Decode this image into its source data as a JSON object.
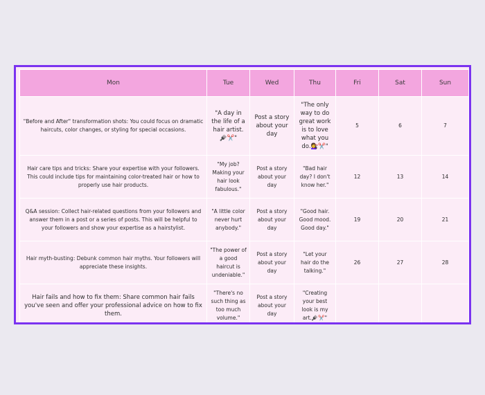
{
  "headers": [
    "Mon",
    "Tue",
    "Wed",
    "Thu",
    "Fri",
    "Sat",
    "Sun"
  ],
  "rows": [
    {
      "mon": "\"Before and After\" transformation shots: You could focus on dramatic haircuts, color changes, or styling for special occasions.",
      "tue": "\"A day in the life of a hair artist.🪮✂️\"",
      "wed": "Post a story about your day",
      "thu": "\"The only way to do great work is to love what you do.💇‍♀️✂️\"",
      "fri": "5",
      "sat": "6",
      "sun": "7"
    },
    {
      "mon": "Hair care tips and tricks: Share your expertise with your followers. This could include tips for maintaining color-treated hair or how to properly use hair products.",
      "tue": "\"My job? Making your hair look fabulous.\"",
      "wed": "Post a story about your day",
      "thu": "\"Bad hair day? I don't know her.\"",
      "fri": "12",
      "sat": "13",
      "sun": "14"
    },
    {
      "mon": "Q&A session: Collect hair-related questions from your followers and answer them in a post or a series of posts. This will be helpful to your followers and show your expertise as a hairstylist.",
      "tue": "\"A little color never hurt anybody.\"",
      "wed": "Post a story about your day",
      "thu": "\"Good hair. Good mood. Good day.\"",
      "fri": "19",
      "sat": "20",
      "sun": "21"
    },
    {
      "mon": "Hair myth-busting: Debunk common hair myths. Your followers will appreciate these insights.",
      "tue": "\"The power of a good haircut is undeniable.\"",
      "wed": "Post a story about your day",
      "thu": "\"Let your hair do the talking.\"",
      "fri": "26",
      "sat": "27",
      "sun": "28"
    },
    {
      "mon": "Hair fails and how to fix them: Share common hair fails you've seen and offer your professional advice on how to fix them.",
      "tue": "\"There's no such thing as too much volume.\"",
      "wed": "Post a story about your day",
      "thu": "\"Creating your best look is my art.🪮✂️\"",
      "fri": "",
      "sat": "",
      "sun": ""
    }
  ]
}
